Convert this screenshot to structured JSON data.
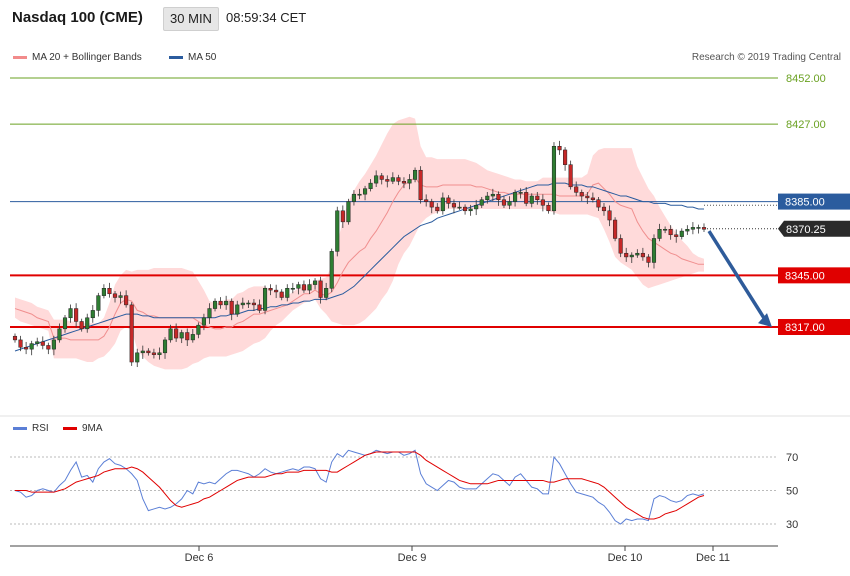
{
  "header": {
    "title": "Nasdaq 100 (CME)",
    "timeframe": "30 MIN",
    "time": "08:59:34 CET"
  },
  "legend": {
    "bollinger": {
      "label": "MA 20 + Bollinger Bands",
      "color": "#f28b8b"
    },
    "ma50": {
      "label": "MA 50",
      "color": "#2b5c9e"
    }
  },
  "copyright": "Research © 2019 Trading Central",
  "rsi_legend": {
    "rsi": {
      "label": "RSI",
      "color": "#5b7fd6"
    },
    "ma9": {
      "label": "9MA",
      "color": "#e00000"
    }
  },
  "colors": {
    "up": "#2e7d32",
    "down": "#c62828",
    "band": "#ffdada",
    "resistance": "#6aa121",
    "support": "#e00000",
    "pivot": "#2b5c9e",
    "arrow": "#2e5b9a"
  },
  "chart_data": [
    {
      "type": "candlestick",
      "ylim": [
        8300,
        8458
      ],
      "x_labels": [
        "Dec 6",
        "Dec 9",
        "Dec 10",
        "Dec 11"
      ],
      "levels": [
        {
          "value": 8452.0,
          "label": "8452.00",
          "kind": "resistance"
        },
        {
          "value": 8427.0,
          "label": "8427.00",
          "kind": "resistance"
        },
        {
          "value": 8385.0,
          "label": "8385.00",
          "kind": "pivot"
        },
        {
          "value": 8345.0,
          "label": "8345.00",
          "kind": "support"
        },
        {
          "value": 8317.0,
          "label": "8317.00",
          "kind": "support"
        }
      ],
      "last_price": {
        "value": 8370.25,
        "label": "8370.25"
      },
      "closes": [
        8310,
        8306,
        8305,
        8308,
        8309,
        8307,
        8305,
        8310,
        8316,
        8322,
        8327,
        8320,
        8316,
        8322,
        8326,
        8334,
        8338,
        8335,
        8333,
        8334,
        8329,
        8298,
        8303,
        8304,
        8303,
        8302,
        8303,
        8310,
        8316,
        8311,
        8314,
        8310,
        8313,
        8318,
        8322,
        8327,
        8331,
        8329,
        8331,
        8324,
        8329,
        8330,
        8330,
        8329,
        8326,
        8338,
        8337,
        8336,
        8333,
        8338,
        8338,
        8340,
        8337,
        8340,
        8342,
        8333,
        8338,
        8358,
        8380,
        8374,
        8385,
        8389,
        8389,
        8392,
        8395,
        8399,
        8397,
        8396,
        8398,
        8396,
        8395,
        8397,
        8402,
        8386,
        8385,
        8382,
        8380,
        8387,
        8384,
        8382,
        8382,
        8380,
        8381,
        8383,
        8386,
        8388,
        8389,
        8386,
        8383,
        8385,
        8390,
        8390,
        8384,
        8388,
        8386,
        8383,
        8380,
        8415,
        8413,
        8405,
        8393,
        8390,
        8388,
        8387,
        8386,
        8382,
        8380,
        8375,
        8365,
        8357,
        8355,
        8356,
        8357,
        8355,
        8352,
        8365,
        8370,
        8370,
        8367,
        8366,
        8369,
        8370,
        8371,
        8371,
        8370
      ],
      "bollinger_upper": [
        8333,
        8332,
        8331,
        8330,
        8328,
        8327,
        8326,
        8321,
        8321,
        8321,
        8320,
        8320,
        8319,
        8319,
        8319,
        8319,
        8322,
        8330,
        8340,
        8345,
        8348,
        8347,
        8348,
        8348,
        8348,
        8349,
        8349,
        8349,
        8349,
        8349,
        8349,
        8348,
        8347,
        8342,
        8337,
        8331,
        8330,
        8330,
        8332,
        8332,
        8335,
        8336,
        8338,
        8339,
        8339,
        8339,
        8337,
        8336,
        8335,
        8334,
        8336,
        8338,
        8339,
        8340,
        8342,
        8343,
        8344,
        8350,
        8362,
        8375,
        8385,
        8391,
        8396,
        8400,
        8405,
        8410,
        8416,
        8422,
        8427,
        8429,
        8430,
        8431,
        8430,
        8415,
        8409,
        8409,
        8408,
        8408,
        8408,
        8408,
        8408,
        8408,
        8407,
        8406,
        8404,
        8402,
        8401,
        8400,
        8399,
        8398,
        8397,
        8397,
        8396,
        8396,
        8396,
        8398,
        8398,
        8398,
        8398,
        8398,
        8398,
        8398,
        8398,
        8400,
        8410,
        8413,
        8414,
        8414,
        8414,
        8414,
        8414,
        8414,
        8404,
        8398,
        8392,
        8388,
        8382,
        8377,
        8372,
        8368,
        8364,
        8361,
        8357,
        8355,
        8354
      ],
      "bollinger_lower": [
        8322,
        8320,
        8319,
        8318,
        8317,
        8316,
        8315,
        8300,
        8300,
        8300,
        8300,
        8300,
        8299,
        8298,
        8298,
        8300,
        8301,
        8304,
        8308,
        8315,
        8317,
        8315,
        8305,
        8301,
        8298,
        8296,
        8295,
        8294,
        8294,
        8294,
        8294,
        8295,
        8297,
        8298,
        8300,
        8301,
        8301,
        8301,
        8301,
        8302,
        8303,
        8304,
        8306,
        8308,
        8309,
        8311,
        8315,
        8318,
        8320,
        8323,
        8326,
        8328,
        8330,
        8331,
        8332,
        8327,
        8324,
        8320,
        8319,
        8318,
        8318,
        8318,
        8319,
        8321,
        8324,
        8327,
        8332,
        8336,
        8342,
        8351,
        8357,
        8361,
        8367,
        8373,
        8376,
        8378,
        8379,
        8380,
        8381,
        8381,
        8381,
        8381,
        8381,
        8381,
        8381,
        8381,
        8381,
        8381,
        8381,
        8381,
        8381,
        8381,
        8381,
        8381,
        8381,
        8381,
        8380,
        8379,
        8378,
        8378,
        8378,
        8378,
        8378,
        8378,
        8377,
        8376,
        8370,
        8363,
        8355,
        8352,
        8350,
        8348,
        8344,
        8340,
        8338,
        8339,
        8340,
        8341,
        8342,
        8343,
        8344,
        8345,
        8346,
        8347,
        8347
      ],
      "ma20": [
        8327,
        8326,
        8325,
        8324,
        8322,
        8321,
        8320,
        8311,
        8311,
        8311,
        8310,
        8310,
        8310,
        8310,
        8310,
        8310,
        8312,
        8317,
        8324,
        8330,
        8332,
        8331,
        8326,
        8325,
        8323,
        8323,
        8322,
        8322,
        8322,
        8322,
        8322,
        8322,
        8322,
        8320,
        8318,
        8317,
        8316,
        8316,
        8317,
        8317,
        8319,
        8320,
        8322,
        8324,
        8324,
        8325,
        8326,
        8327,
        8328,
        8329,
        8331,
        8333,
        8335,
        8335,
        8337,
        8335,
        8334,
        8336,
        8341,
        8347,
        8352,
        8355,
        8358,
        8360,
        8365,
        8369,
        8374,
        8379,
        8385,
        8390,
        8394,
        8396,
        8398,
        8394,
        8393,
        8393,
        8393,
        8394,
        8394,
        8394,
        8394,
        8394,
        8394,
        8393,
        8393,
        8392,
        8391,
        8390,
        8390,
        8389,
        8389,
        8389,
        8389,
        8389,
        8389,
        8389,
        8389,
        8389,
        8388,
        8388,
        8388,
        8388,
        8388,
        8389,
        8394,
        8395,
        8392,
        8389,
        8385,
        8383,
        8382,
        8381,
        8374,
        8369,
        8365,
        8363,
        8361,
        8359,
        8357,
        8356,
        8354,
        8353,
        8352,
        8351,
        8351
      ],
      "ma50": [
        8304,
        8305,
        8306,
        8307,
        8308,
        8309,
        8310,
        8311,
        8312,
        8313,
        8314,
        8315,
        8316,
        8317,
        8318,
        8319,
        8320,
        8321,
        8322,
        8323,
        8324,
        8324,
        8324,
        8323,
        8323,
        8322,
        8322,
        8322,
        8322,
        8322,
        8322,
        8322,
        8322,
        8322,
        8322,
        8322,
        8322,
        8323,
        8323,
        8324,
        8324,
        8325,
        8326,
        8326,
        8327,
        8327,
        8328,
        8328,
        8329,
        8329,
        8330,
        8330,
        8331,
        8331,
        8332,
        8332,
        8332,
        8333,
        8334,
        8335,
        8337,
        8339,
        8342,
        8345,
        8348,
        8351,
        8354,
        8357,
        8360,
        8363,
        8366,
        8368,
        8370,
        8372,
        8373,
        8374,
        8376,
        8377,
        8378,
        8379,
        8380,
        8381,
        8382,
        8383,
        8384,
        8385,
        8386,
        8387,
        8388,
        8389,
        8390,
        8391,
        8392,
        8393,
        8394,
        8394,
        8394,
        8395,
        8395,
        8395,
        8394,
        8394,
        8394,
        8393,
        8393,
        8392,
        8391,
        8390,
        8389,
        8388,
        8388,
        8387,
        8386,
        8385,
        8385,
        8384,
        8384,
        8384,
        8383,
        8383,
        8383,
        8382,
        8382,
        8381,
        8381
      ]
    },
    {
      "type": "line",
      "series": [
        {
          "name": "RSI",
          "values": [
            50,
            49,
            46,
            47,
            50,
            51,
            50,
            49,
            53,
            56,
            62,
            67,
            58,
            59,
            55,
            63,
            67,
            69,
            66,
            65,
            63,
            60,
            56,
            45,
            38,
            39,
            40,
            39,
            40,
            42,
            45,
            50,
            48,
            55,
            54,
            55,
            54,
            57,
            60,
            62,
            62,
            61,
            60,
            58,
            60,
            63,
            61,
            60,
            61,
            62,
            63,
            62,
            64,
            64,
            63,
            57,
            55,
            67,
            72,
            70,
            74,
            73,
            72,
            71,
            72,
            74,
            73,
            72,
            73,
            73,
            71,
            72,
            74,
            60,
            54,
            52,
            50,
            53,
            56,
            55,
            52,
            51,
            51,
            51,
            54,
            57,
            60,
            59,
            56,
            53,
            58,
            60,
            56,
            52,
            51,
            48,
            48,
            70,
            66,
            60,
            54,
            49,
            48,
            47,
            46,
            43,
            41,
            37,
            32,
            30,
            33,
            32,
            33,
            33,
            32,
            45,
            47,
            46,
            44,
            43,
            44,
            47,
            48,
            47,
            48
          ]
        },
        {
          "name": "9MA",
          "values": [
            50,
            50,
            50,
            49,
            49,
            49,
            49,
            49,
            50,
            51,
            53,
            55,
            56,
            57,
            58,
            59,
            61,
            62,
            63,
            63,
            63,
            64,
            63,
            61,
            58,
            55,
            52,
            48,
            44,
            41,
            40,
            41,
            42,
            43,
            45,
            46,
            48,
            50,
            52,
            54,
            56,
            57,
            58,
            58,
            58,
            58,
            59,
            60,
            60,
            61,
            61,
            61,
            62,
            62,
            62,
            62,
            62,
            61,
            61,
            63,
            65,
            67,
            69,
            71,
            72,
            73,
            73,
            73,
            73,
            73,
            73,
            73,
            73,
            71,
            68,
            66,
            64,
            62,
            60,
            58,
            56,
            55,
            54,
            54,
            54,
            54,
            55,
            56,
            56,
            56,
            56,
            56,
            56,
            56,
            56,
            56,
            55,
            55,
            56,
            57,
            57,
            57,
            57,
            56,
            55,
            54,
            52,
            49,
            46,
            43,
            40,
            38,
            36,
            34,
            33,
            33,
            34,
            36,
            37,
            38,
            40,
            42,
            44,
            46,
            47
          ]
        }
      ],
      "ylim": [
        22,
        80
      ],
      "ticks": [
        "70",
        "50",
        "30"
      ],
      "x_labels": [
        "Dec 6",
        "Dec 9",
        "Dec 10",
        "Dec 11"
      ]
    }
  ]
}
